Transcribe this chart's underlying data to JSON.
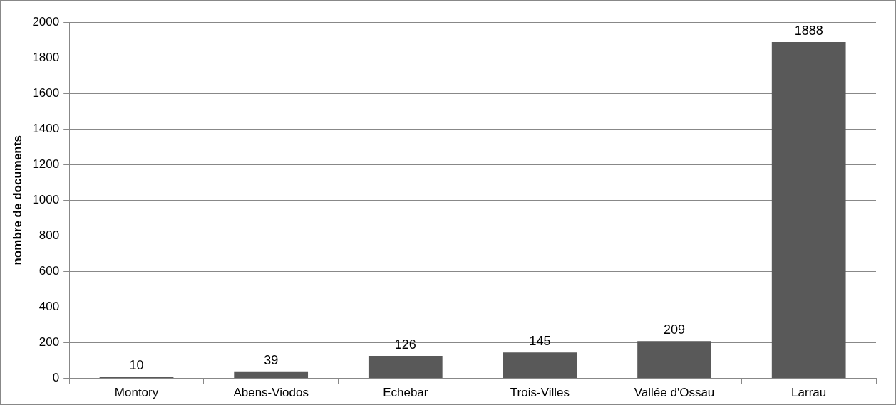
{
  "chart_data": {
    "type": "bar",
    "ylabel": "nombre de documents",
    "categories": [
      "Montory",
      "Abens-Viodos",
      "Echebar",
      "Trois-Villes",
      "Vallée d'Ossau",
      "Larrau"
    ],
    "values": [
      10,
      39,
      126,
      145,
      209,
      1888
    ],
    "color": "#595959",
    "ylim": [
      0,
      2000
    ],
    "yticks": [
      0,
      200,
      400,
      600,
      800,
      1000,
      1200,
      1400,
      1600,
      1800,
      2000
    ],
    "grid": "y",
    "data_labels": true,
    "legend": false
  }
}
